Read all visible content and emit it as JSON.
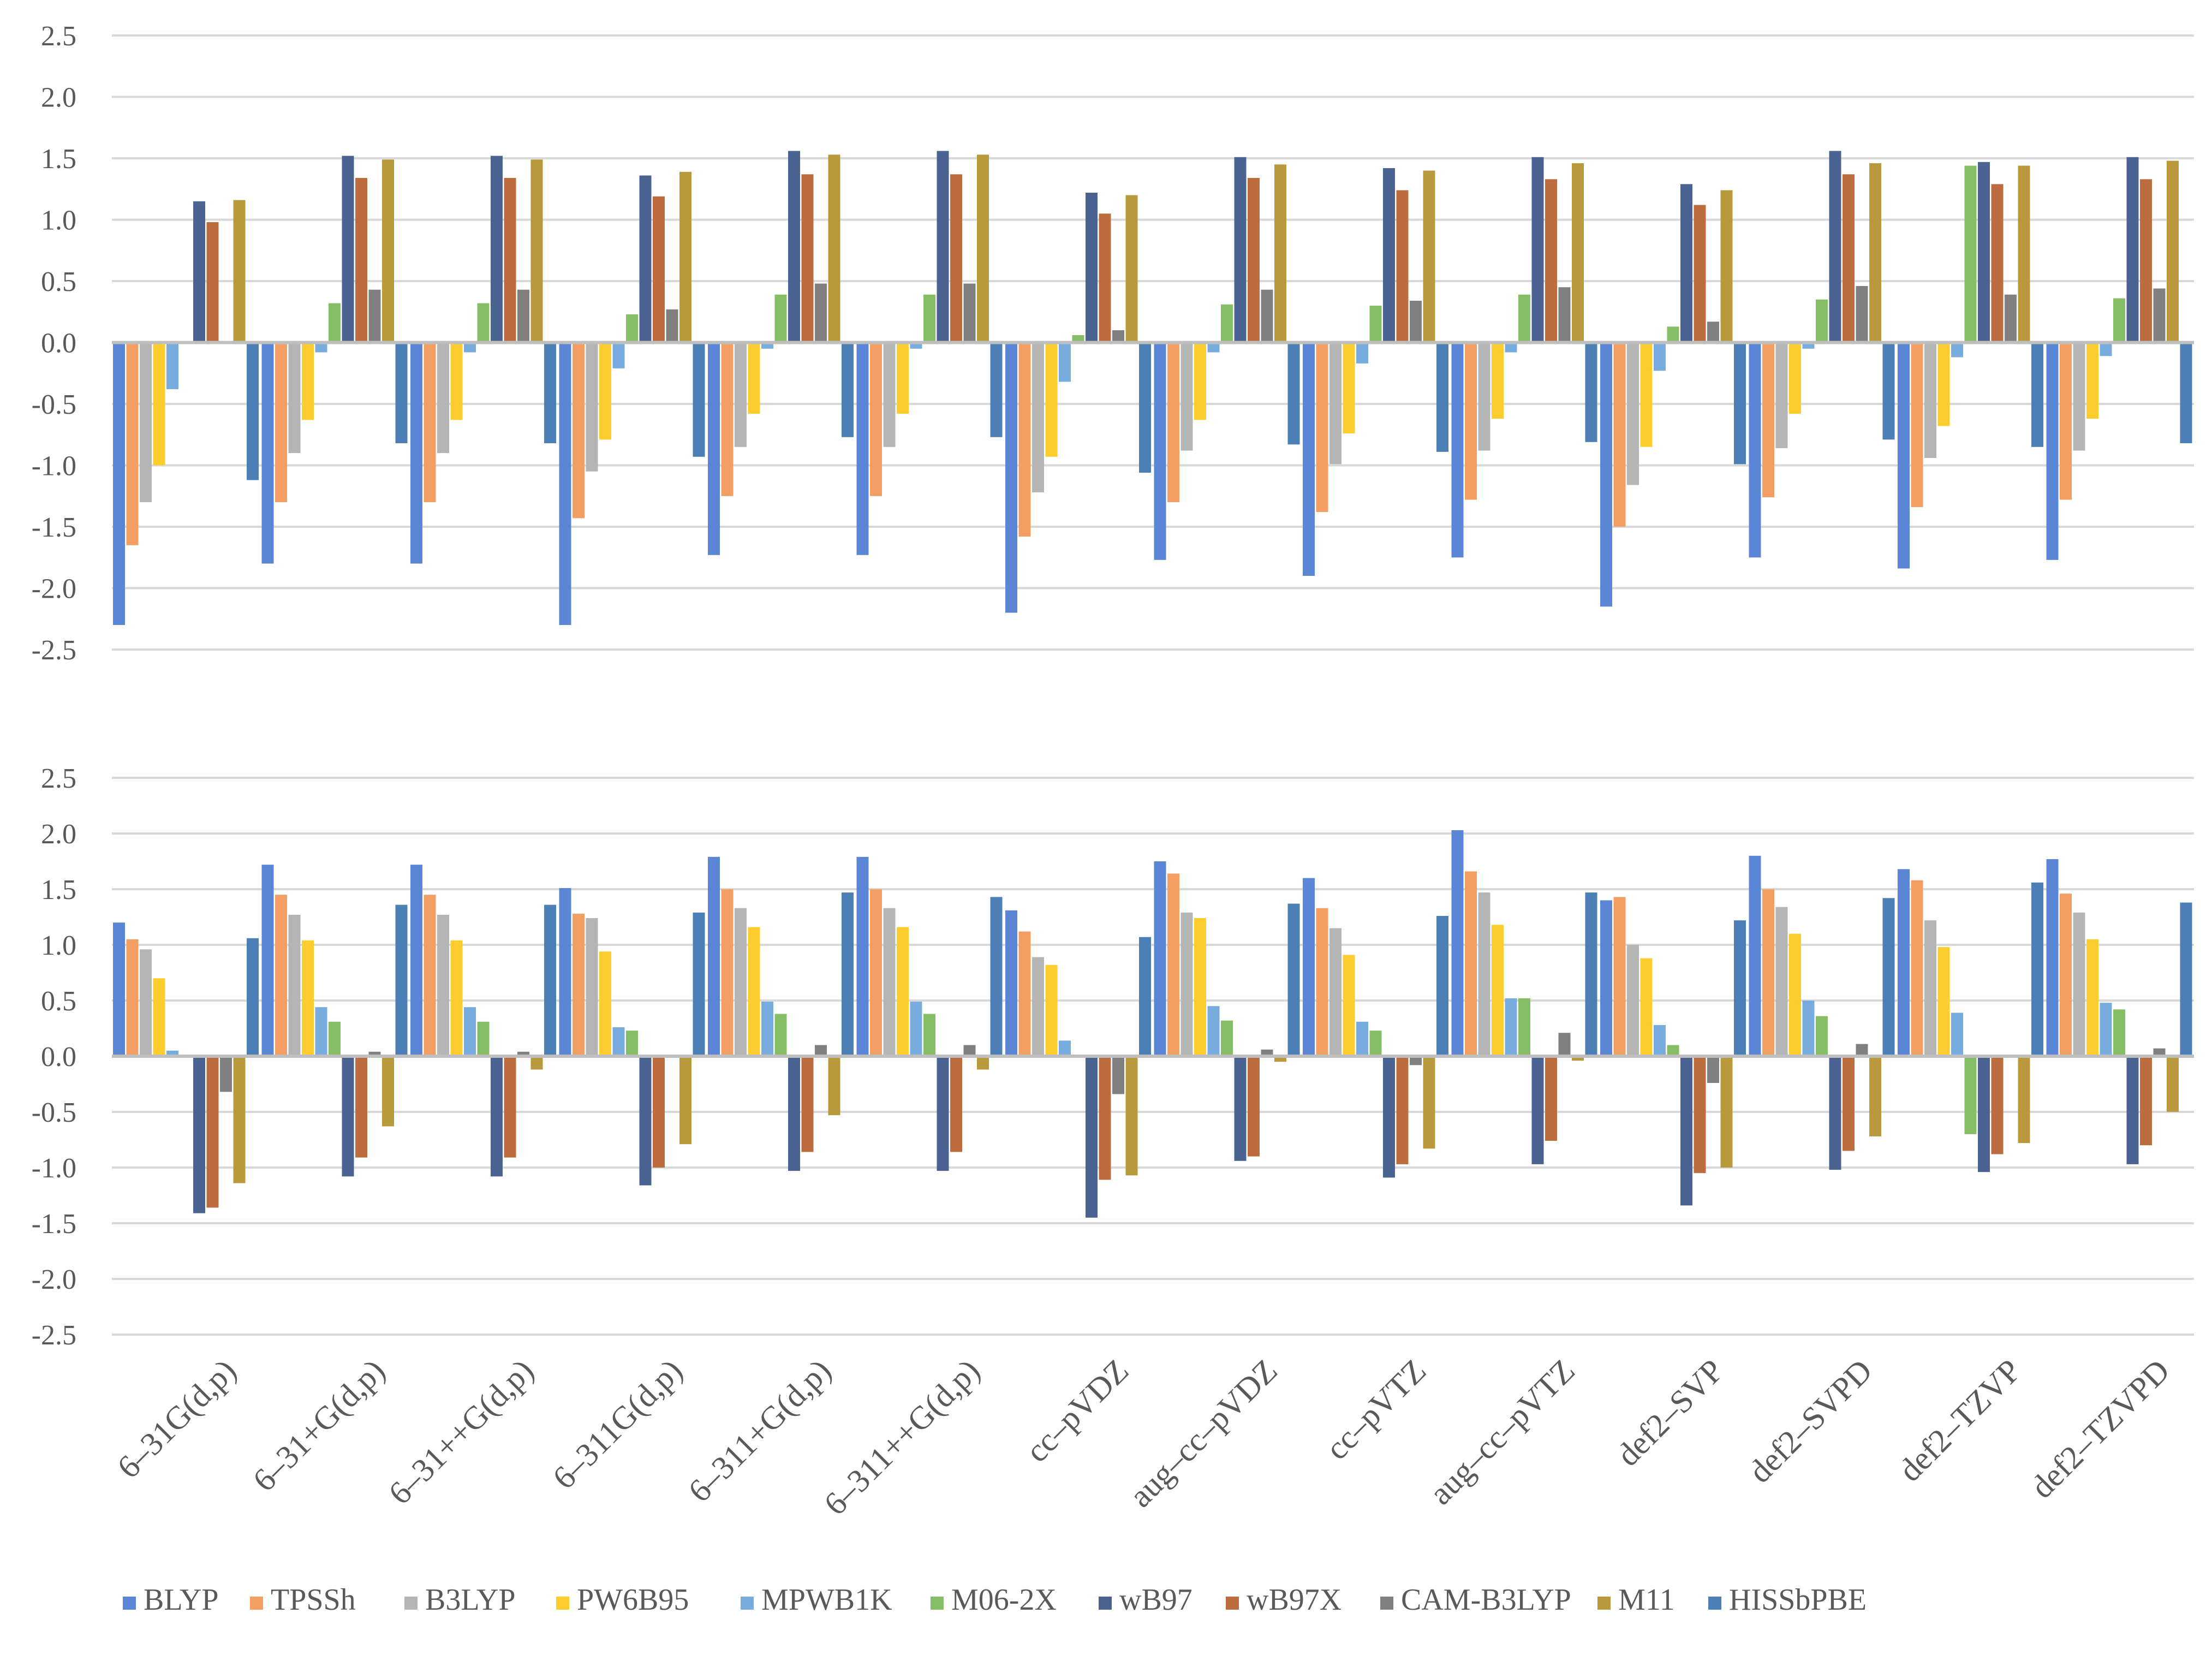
{
  "chart_data": [
    {
      "type": "bar",
      "title": "",
      "xlabel": "",
      "ylabel": "",
      "ylim": [
        -2.5,
        2.5
      ],
      "yticks": [
        "2.5",
        "2.0",
        "1.5",
        "1.0",
        "0.5",
        "0.0",
        "-0.5",
        "-1.0",
        "-1.5",
        "-2.0",
        "-2.5"
      ],
      "categories": [
        "6–31G(d,p)",
        "6–31+G(d,p)",
        "6–31++G(d,p)",
        "6–311G(d,p)",
        "6–311+G(d,p)",
        "6–311++G(d,p)",
        "cc–pVDZ",
        "aug–cc–pVDZ",
        "cc–pVTZ",
        "aug–cc–pVTZ",
        "def2–SVP",
        "def2–SVPD",
        "def2–TZVP",
        "def2–TZVPD"
      ],
      "series": [
        {
          "name": "BLYP",
          "values": [
            -2.3,
            -1.8,
            -1.8,
            -2.3,
            -1.73,
            -1.73,
            -2.2,
            -1.77,
            -1.9,
            -1.75,
            -2.15,
            -1.75,
            -1.84,
            -1.77
          ]
        },
        {
          "name": "TPSSh",
          "values": [
            -1.65,
            -1.3,
            -1.3,
            -1.43,
            -1.25,
            -1.25,
            -1.58,
            -1.3,
            -1.38,
            -1.28,
            -1.5,
            -1.26,
            -1.34,
            -1.28
          ]
        },
        {
          "name": "B3LYP",
          "values": [
            -1.3,
            -0.9,
            -0.9,
            -1.05,
            -0.85,
            -0.85,
            -1.22,
            -0.88,
            -0.99,
            -0.88,
            -1.16,
            -0.86,
            -0.94,
            -0.88
          ]
        },
        {
          "name": "PW6B95",
          "values": [
            -1.0,
            -0.63,
            -0.63,
            -0.79,
            -0.58,
            -0.58,
            -0.93,
            -0.63,
            -0.74,
            -0.62,
            -0.85,
            -0.58,
            -0.68,
            -0.62
          ]
        },
        {
          "name": "MPWB1K",
          "values": [
            -0.38,
            -0.08,
            -0.08,
            -0.21,
            -0.05,
            -0.05,
            -0.32,
            -0.08,
            -0.17,
            -0.08,
            -0.23,
            -0.05,
            -0.12,
            -0.11
          ]
        },
        {
          "name": "M06-2X",
          "values": [
            0.0,
            0.32,
            0.32,
            0.23,
            0.39,
            0.39,
            0.06,
            0.31,
            0.3,
            0.39,
            0.13,
            0.35,
            1.44,
            0.36
          ]
        },
        {
          "name": "wB97",
          "values": [
            1.15,
            1.52,
            1.52,
            1.36,
            1.56,
            1.56,
            1.22,
            1.51,
            1.42,
            1.51,
            1.29,
            1.56,
            1.47,
            1.51
          ]
        },
        {
          "name": "wB97X",
          "values": [
            0.98,
            1.34,
            1.34,
            1.19,
            1.37,
            1.37,
            1.05,
            1.34,
            1.24,
            1.33,
            1.12,
            1.37,
            1.29,
            1.33
          ]
        },
        {
          "name": "CAM-B3LYP",
          "values": [
            0.0,
            0.43,
            0.43,
            0.27,
            0.48,
            0.48,
            0.1,
            0.43,
            0.34,
            0.45,
            0.17,
            0.46,
            0.39,
            0.44
          ]
        },
        {
          "name": "M11",
          "values": [
            1.16,
            1.49,
            1.49,
            1.39,
            1.53,
            1.53,
            1.2,
            1.45,
            1.4,
            1.46,
            1.24,
            1.46,
            1.44,
            1.48
          ]
        },
        {
          "name": "HISSbPBE",
          "values": [
            -1.12,
            -0.82,
            -0.82,
            -0.93,
            -0.77,
            -0.77,
            -1.06,
            -0.83,
            -0.89,
            -0.81,
            -0.99,
            -0.79,
            -0.85,
            -0.82
          ]
        }
      ]
    },
    {
      "type": "bar",
      "title": "",
      "xlabel": "",
      "ylabel": "",
      "ylim": [
        -2.5,
        2.5
      ],
      "yticks": [
        "2.5",
        "2.0",
        "1.5",
        "1.0",
        "0.5",
        "0.0",
        "-0.5",
        "-1.0",
        "-1.5",
        "-2.0",
        "-2.5"
      ],
      "categories": [
        "6–31G(d,p)",
        "6–31+G(d,p)",
        "6–31++G(d,p)",
        "6–311G(d,p)",
        "6–311+G(d,p)",
        "6–311++G(d,p)",
        "cc–pVDZ",
        "aug–cc–pVDZ",
        "cc–pVTZ",
        "aug–cc–pVTZ",
        "def2–SVP",
        "def2–SVPD",
        "def2–TZVP",
        "def2–TZVPD"
      ],
      "series": [
        {
          "name": "BLYP",
          "values": [
            1.2,
            1.72,
            1.72,
            1.51,
            1.79,
            1.79,
            1.31,
            1.75,
            1.6,
            2.03,
            1.4,
            1.8,
            1.68,
            1.77
          ]
        },
        {
          "name": "TPSSh",
          "values": [
            1.05,
            1.45,
            1.45,
            1.28,
            1.5,
            1.5,
            1.12,
            1.64,
            1.33,
            1.66,
            1.43,
            1.5,
            1.58,
            1.46
          ]
        },
        {
          "name": "B3LYP",
          "values": [
            0.96,
            1.27,
            1.27,
            1.24,
            1.33,
            1.33,
            0.89,
            1.29,
            1.15,
            1.47,
            1.0,
            1.34,
            1.22,
            1.29
          ]
        },
        {
          "name": "PW6B95",
          "values": [
            0.7,
            1.04,
            1.04,
            0.94,
            1.16,
            1.16,
            0.82,
            1.24,
            0.91,
            1.18,
            0.88,
            1.1,
            0.98,
            1.05
          ]
        },
        {
          "name": "MPWB1K",
          "values": [
            0.05,
            0.44,
            0.44,
            0.26,
            0.49,
            0.49,
            0.14,
            0.45,
            0.31,
            0.52,
            0.28,
            0.5,
            0.39,
            0.48
          ]
        },
        {
          "name": "M06-2X",
          "values": [
            0.0,
            0.31,
            0.31,
            0.23,
            0.38,
            0.38,
            0.0,
            0.32,
            0.23,
            0.52,
            0.1,
            0.36,
            -0.7,
            0.42
          ]
        },
        {
          "name": "wB97",
          "values": [
            -1.41,
            -1.08,
            -1.08,
            -1.16,
            -1.03,
            -1.03,
            -1.45,
            -0.94,
            -1.09,
            -0.97,
            -1.34,
            -1.02,
            -1.04,
            -0.97
          ]
        },
        {
          "name": "wB97X",
          "values": [
            -1.36,
            -0.91,
            -0.91,
            -1.0,
            -0.86,
            -0.86,
            -1.11,
            -0.9,
            -0.97,
            -0.76,
            -1.05,
            -0.85,
            -0.88,
            -0.8
          ]
        },
        {
          "name": "CAM-B3LYP",
          "values": [
            -0.32,
            0.04,
            0.04,
            0.0,
            0.1,
            0.1,
            -0.34,
            0.06,
            -0.08,
            0.21,
            -0.24,
            0.11,
            0.0,
            0.07
          ]
        },
        {
          "name": "M11",
          "values": [
            -1.14,
            -0.63,
            -0.12,
            -0.79,
            -0.53,
            -0.12,
            -1.07,
            -0.05,
            -0.83,
            -0.04,
            -1.0,
            -0.72,
            -0.78,
            -0.5
          ]
        },
        {
          "name": "HISSbPBE",
          "values": [
            1.06,
            1.36,
            1.36,
            1.29,
            1.47,
            1.43,
            1.07,
            1.37,
            1.26,
            1.47,
            1.22,
            1.42,
            1.56,
            1.38
          ]
        }
      ]
    }
  ],
  "legend": [
    {
      "name": "BLYP",
      "color": "#5b86d6"
    },
    {
      "name": "TPSSh",
      "color": "#f39e63"
    },
    {
      "name": "B3LYP",
      "color": "#b5b5b5"
    },
    {
      "name": "PW6B95",
      "color": "#fdcd2e"
    },
    {
      "name": "MPWB1K",
      "color": "#79acde"
    },
    {
      "name": "M06-2X",
      "color": "#86be66"
    },
    {
      "name": "wB97",
      "color": "#4b6390"
    },
    {
      "name": "wB97X",
      "color": "#bc6c3e"
    },
    {
      "name": "CAM-B3LYP",
      "color": "#808080"
    },
    {
      "name": "M11",
      "color": "#b89a3c"
    },
    {
      "name": "HISSbPBE",
      "color": "#4b7fb5"
    }
  ]
}
